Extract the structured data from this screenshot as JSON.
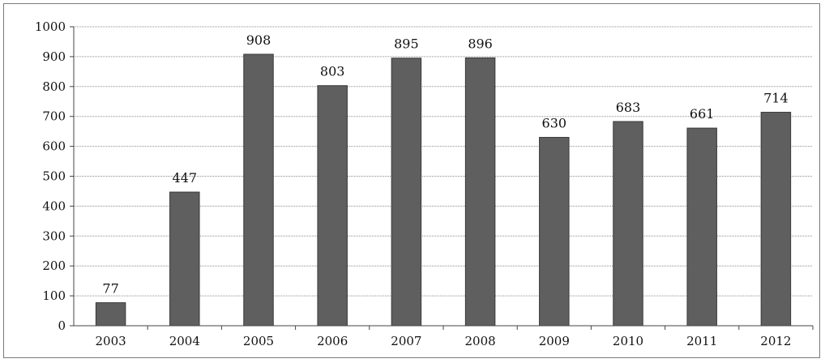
{
  "chart_data": {
    "type": "bar",
    "title": "",
    "xlabel": "",
    "ylabel": "",
    "categories": [
      "2003",
      "2004",
      "2005",
      "2006",
      "2007",
      "2008",
      "2009",
      "2010",
      "2011",
      "2012"
    ],
    "values": [
      77,
      447,
      908,
      803,
      895,
      896,
      630,
      683,
      661,
      714
    ],
    "data_labels": [
      "77",
      "447",
      "908",
      "803",
      "895",
      "896",
      "630",
      "683",
      "661",
      "714"
    ],
    "ylim": [
      0,
      1000
    ],
    "yticks": [
      "0",
      "100",
      "200",
      "300",
      "400",
      "500",
      "600",
      "700",
      "800",
      "900",
      "1000"
    ],
    "grid": true,
    "legend": "none",
    "colors": {
      "bar": "#5f5f5f",
      "bar_edge": "#3a3a3a",
      "grid": "#8c8c8c",
      "axis": "#444444"
    }
  }
}
